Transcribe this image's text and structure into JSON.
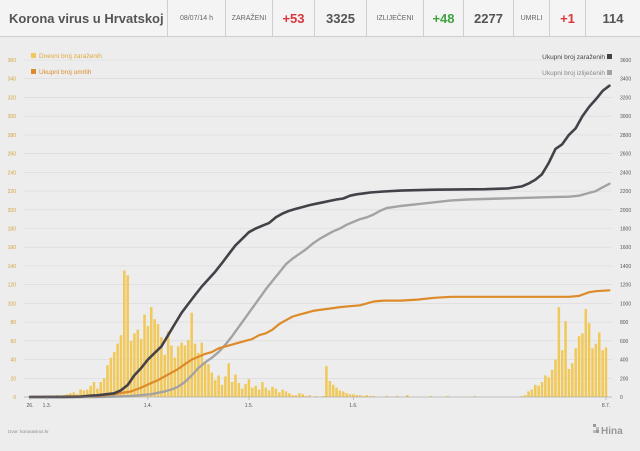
{
  "header": {
    "title": "Korona virus u Hrvatskoj",
    "date": "08/07/14 h",
    "infected_label": "ZARAŽENI",
    "infected_delta": "+53",
    "infected_total": "3325",
    "recovered_label": "IZLIJEČENI",
    "recovered_delta": "+48",
    "recovered_total": "2277",
    "deaths_label": "UMRLI",
    "deaths_delta": "+1",
    "deaths_total": "114"
  },
  "footer": {
    "source": "Izvor: koronavirus.hr",
    "logo": "Hina"
  },
  "colors": {
    "infected": "#454149",
    "recovered": "#a3a3a3",
    "deaths": "#dd8b2a",
    "daily": "#f1c85a"
  },
  "chart_data": {
    "type": "bar+line",
    "x_tick_labels": [
      "26.",
      "1.3.",
      "1.4.",
      "1.5.",
      "1.6.",
      "8.7."
    ],
    "left_axis": {
      "ylim": [
        0,
        360
      ],
      "ticks": [
        0,
        20,
        40,
        60,
        80,
        100,
        120,
        140,
        160,
        180,
        200,
        220,
        240,
        260,
        280,
        300,
        320,
        340,
        360
      ]
    },
    "right_axis": {
      "ylim": [
        0,
        3600
      ],
      "ticks": [
        0,
        200,
        400,
        600,
        800,
        1000,
        1200,
        1400,
        1600,
        1800,
        2000,
        2200,
        2400,
        2600,
        2800,
        3000,
        3200,
        3400,
        3600
      ]
    },
    "grid": true,
    "legend_left": [
      "Dnevni broj zaraženih",
      "Ukupni broj umrlih"
    ],
    "legend_right": [
      "Ukupni broj zaraženih",
      "Ukupni broj izliječenih"
    ],
    "daily_cases": [
      0,
      0,
      0,
      0,
      1,
      0,
      0,
      1,
      2,
      1,
      2,
      3,
      4,
      5,
      3,
      8,
      7,
      8,
      12,
      16,
      9,
      16,
      20,
      34,
      42,
      48,
      57,
      66,
      135,
      130,
      60,
      68,
      72,
      62,
      88,
      76,
      96,
      83,
      78,
      64,
      45,
      70,
      55,
      42,
      54,
      58,
      55,
      61,
      90,
      57,
      47,
      58,
      38,
      35,
      26,
      18,
      23,
      13,
      22,
      36,
      16,
      24,
      15,
      9,
      14,
      19,
      10,
      12,
      8,
      16,
      10,
      7,
      11,
      9,
      5,
      8,
      6,
      4,
      2,
      2,
      4,
      3,
      1,
      2,
      0,
      1,
      0,
      1,
      33,
      17,
      13,
      10,
      7,
      6,
      4,
      3,
      3,
      2,
      2,
      1,
      2,
      1,
      1,
      0,
      0,
      0,
      1,
      0,
      0,
      1,
      0,
      0,
      2,
      0,
      0,
      0,
      0,
      0,
      0,
      1,
      0,
      0,
      0,
      0,
      1,
      0,
      0,
      0,
      0,
      0,
      0,
      0,
      1,
      0,
      0,
      0,
      0,
      0,
      0,
      0,
      0,
      0,
      0,
      0,
      0,
      0,
      1,
      2,
      6,
      8,
      13,
      12,
      16,
      23,
      21,
      29,
      40,
      96,
      50,
      81,
      30,
      36,
      52,
      65,
      68,
      94,
      79,
      52,
      57,
      69,
      50,
      53
    ],
    "total_infected": [
      [
        0,
        0
      ],
      [
        10,
        1
      ],
      [
        15,
        3
      ],
      [
        18,
        14
      ],
      [
        20,
        18
      ],
      [
        25,
        40
      ],
      [
        27,
        72
      ],
      [
        29,
        128
      ],
      [
        31,
        232
      ],
      [
        33,
        310
      ],
      [
        35,
        400
      ],
      [
        37,
        470
      ],
      [
        39,
        540
      ],
      [
        41,
        660
      ],
      [
        43,
        780
      ],
      [
        45,
        900
      ],
      [
        47,
        995
      ],
      [
        49,
        1090
      ],
      [
        51,
        1180
      ],
      [
        53,
        1260
      ],
      [
        55,
        1340
      ],
      [
        57,
        1430
      ],
      [
        59,
        1525
      ],
      [
        61,
        1620
      ],
      [
        63,
        1690
      ],
      [
        65,
        1760
      ],
      [
        67,
        1800
      ],
      [
        69,
        1830
      ],
      [
        71,
        1860
      ],
      [
        73,
        1920
      ],
      [
        75,
        1960
      ],
      [
        77,
        1990
      ],
      [
        79,
        2010
      ],
      [
        81,
        2030
      ],
      [
        83,
        2050
      ],
      [
        85,
        2065
      ],
      [
        87,
        2080
      ],
      [
        89,
        2095
      ],
      [
        91,
        2110
      ],
      [
        93,
        2120
      ],
      [
        95,
        2150
      ],
      [
        97,
        2165
      ],
      [
        99,
        2175
      ],
      [
        101,
        2185
      ],
      [
        105,
        2195
      ],
      [
        110,
        2205
      ],
      [
        120,
        2215
      ],
      [
        135,
        2220
      ],
      [
        142,
        2228
      ],
      [
        146,
        2250
      ],
      [
        148,
        2280
      ],
      [
        150,
        2320
      ],
      [
        152,
        2380
      ],
      [
        154,
        2500
      ],
      [
        156,
        2650
      ],
      [
        158,
        2700
      ],
      [
        160,
        2800
      ],
      [
        162,
        2870
      ],
      [
        164,
        3000
      ],
      [
        166,
        3100
      ],
      [
        168,
        3180
      ],
      [
        170,
        3270
      ],
      [
        172,
        3325
      ]
    ],
    "total_recovered": [
      [
        0,
        0
      ],
      [
        20,
        0
      ],
      [
        30,
        10
      ],
      [
        36,
        30
      ],
      [
        40,
        60
      ],
      [
        42,
        80
      ],
      [
        44,
        110
      ],
      [
        46,
        160
      ],
      [
        48,
        230
      ],
      [
        50,
        310
      ],
      [
        52,
        370
      ],
      [
        54,
        420
      ],
      [
        56,
        480
      ],
      [
        58,
        560
      ],
      [
        60,
        650
      ],
      [
        62,
        750
      ],
      [
        64,
        850
      ],
      [
        66,
        950
      ],
      [
        68,
        1050
      ],
      [
        70,
        1150
      ],
      [
        72,
        1240
      ],
      [
        74,
        1330
      ],
      [
        76,
        1420
      ],
      [
        78,
        1480
      ],
      [
        80,
        1530
      ],
      [
        82,
        1580
      ],
      [
        84,
        1640
      ],
      [
        86,
        1690
      ],
      [
        88,
        1730
      ],
      [
        90,
        1770
      ],
      [
        92,
        1800
      ],
      [
        94,
        1840
      ],
      [
        96,
        1870
      ],
      [
        98,
        1900
      ],
      [
        100,
        1920
      ],
      [
        102,
        1950
      ],
      [
        104,
        1990
      ],
      [
        106,
        2020
      ],
      [
        108,
        2030
      ],
      [
        110,
        2040
      ],
      [
        115,
        2060
      ],
      [
        120,
        2080
      ],
      [
        125,
        2100
      ],
      [
        130,
        2110
      ],
      [
        135,
        2115
      ],
      [
        140,
        2120
      ],
      [
        145,
        2125
      ],
      [
        150,
        2130
      ],
      [
        155,
        2135
      ],
      [
        160,
        2140
      ],
      [
        163,
        2150
      ],
      [
        166,
        2180
      ],
      [
        168,
        2200
      ],
      [
        170,
        2240
      ],
      [
        172,
        2277
      ]
    ],
    "total_deaths": [
      [
        0,
        0
      ],
      [
        20,
        1
      ],
      [
        25,
        3
      ],
      [
        30,
        6
      ],
      [
        33,
        10
      ],
      [
        36,
        15
      ],
      [
        38,
        18
      ],
      [
        40,
        22
      ],
      [
        42,
        26
      ],
      [
        44,
        30
      ],
      [
        46,
        35
      ],
      [
        48,
        40
      ],
      [
        50,
        43
      ],
      [
        52,
        46
      ],
      [
        54,
        48
      ],
      [
        56,
        52
      ],
      [
        58,
        54
      ],
      [
        60,
        56
      ],
      [
        62,
        58
      ],
      [
        64,
        60
      ],
      [
        66,
        62
      ],
      [
        68,
        66
      ],
      [
        70,
        68
      ],
      [
        72,
        72
      ],
      [
        74,
        78
      ],
      [
        76,
        82
      ],
      [
        78,
        86
      ],
      [
        80,
        88
      ],
      [
        82,
        90
      ],
      [
        84,
        92
      ],
      [
        86,
        93
      ],
      [
        88,
        94
      ],
      [
        90,
        95
      ],
      [
        92,
        96
      ],
      [
        95,
        97
      ],
      [
        98,
        98
      ],
      [
        100,
        100
      ],
      [
        102,
        102
      ],
      [
        105,
        103
      ],
      [
        110,
        103
      ],
      [
        115,
        104
      ],
      [
        120,
        106
      ],
      [
        125,
        107
      ],
      [
        130,
        107
      ],
      [
        135,
        107
      ],
      [
        140,
        107
      ],
      [
        145,
        107
      ],
      [
        150,
        107
      ],
      [
        155,
        107
      ],
      [
        160,
        107
      ],
      [
        163,
        108
      ],
      [
        166,
        112
      ],
      [
        168,
        113
      ],
      [
        172,
        114
      ]
    ]
  }
}
